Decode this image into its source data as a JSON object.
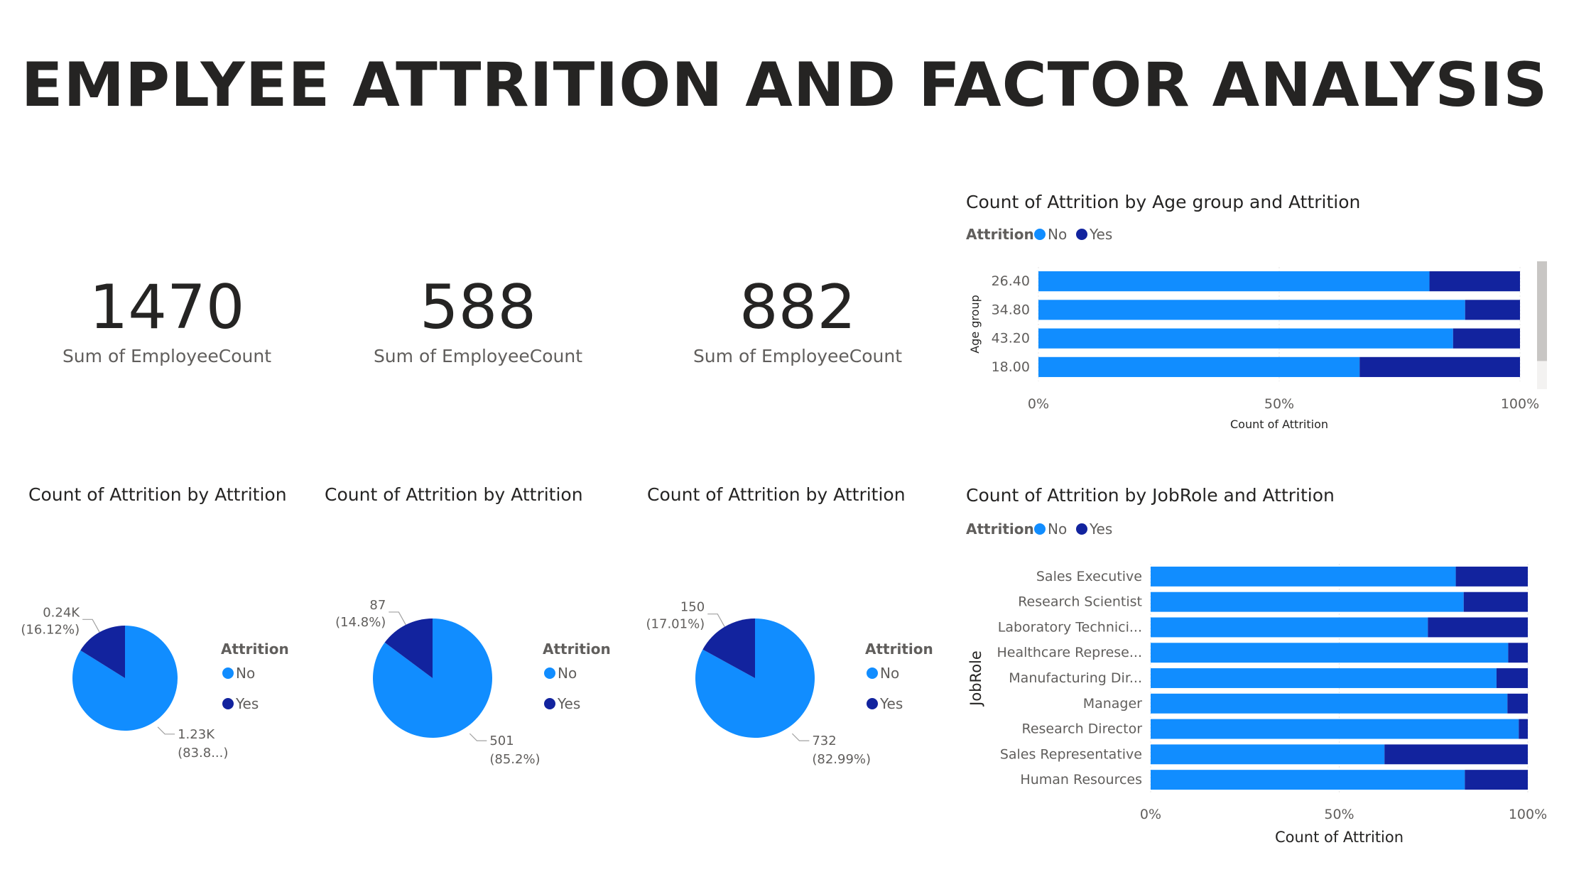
{
  "page": {
    "title": "EMPLYEE ATTRITION AND FACTOR ANALYSIS"
  },
  "colors": {
    "no": "#118dff",
    "yes": "#12239e"
  },
  "kpis": [
    {
      "value": "1470",
      "label": "Sum of EmployeeCount"
    },
    {
      "value": "588",
      "label": "Sum of EmployeeCount"
    },
    {
      "value": "882",
      "label": "Sum of EmployeeCount"
    }
  ],
  "chart_data": [
    {
      "type": "bar",
      "stacked": "100%",
      "orientation": "horizontal",
      "title": "Count of Attrition by Age group and Attrition",
      "legend": {
        "title": "Attrition",
        "entries": [
          "No",
          "Yes"
        ],
        "position": "top-left"
      },
      "ylabel": "Age group",
      "xlabel": "Count of Attrition",
      "x_ticks": [
        "0%",
        "50%",
        "100%"
      ],
      "categories": [
        "26.40",
        "34.80",
        "43.20",
        "18.00"
      ],
      "series": [
        {
          "name": "No",
          "values": [
            81.2,
            88.6,
            86.1,
            66.7
          ]
        },
        {
          "name": "Yes",
          "values": [
            18.8,
            11.4,
            13.9,
            33.3
          ]
        }
      ]
    },
    {
      "type": "pie",
      "title": "Count of Attrition by Attrition",
      "legend": {
        "title": "Attrition",
        "entries": [
          "No",
          "Yes"
        ],
        "position": "right"
      },
      "slices": [
        {
          "name": "No",
          "percent": 83.88,
          "label_value": "1.23K",
          "label_pct": "(83.8...)"
        },
        {
          "name": "Yes",
          "percent": 16.12,
          "label_value": "0.24K",
          "label_pct": "(16.12%)"
        }
      ]
    },
    {
      "type": "pie",
      "title": "Count of Attrition by Attrition",
      "legend": {
        "title": "Attrition",
        "entries": [
          "No",
          "Yes"
        ],
        "position": "right"
      },
      "slices": [
        {
          "name": "No",
          "percent": 85.2,
          "label_value": "501",
          "label_pct": "(85.2%)"
        },
        {
          "name": "Yes",
          "percent": 14.8,
          "label_value": "87",
          "label_pct": "(14.8%)"
        }
      ]
    },
    {
      "type": "pie",
      "title": "Count of Attrition by Attrition",
      "legend": {
        "title": "Attrition",
        "entries": [
          "No",
          "Yes"
        ],
        "position": "right"
      },
      "slices": [
        {
          "name": "No",
          "percent": 82.99,
          "label_value": "732",
          "label_pct": "(82.99%)"
        },
        {
          "name": "Yes",
          "percent": 17.01,
          "label_value": "150",
          "label_pct": "(17.01%)"
        }
      ]
    },
    {
      "type": "bar",
      "stacked": "100%",
      "orientation": "horizontal",
      "title": "Count of Attrition by JobRole and Attrition",
      "legend": {
        "title": "Attrition",
        "entries": [
          "No",
          "Yes"
        ],
        "position": "top-left"
      },
      "ylabel": "JobRole",
      "xlabel": "Count of Attrition",
      "x_ticks": [
        "0%",
        "50%",
        "100%"
      ],
      "categories": [
        "Sales Executive",
        "Research Scientist",
        "Laboratory Technici...",
        "Healthcare Represe...",
        "Manufacturing Dir...",
        "Manager",
        "Research Director",
        "Sales Representative",
        "Human Resources"
      ],
      "series": [
        {
          "name": "No",
          "values": [
            80.9,
            83.0,
            73.5,
            94.8,
            91.7,
            94.6,
            97.6,
            62.0,
            83.3
          ]
        },
        {
          "name": "Yes",
          "values": [
            19.1,
            17.0,
            26.5,
            5.2,
            8.3,
            5.4,
            2.4,
            38.0,
            16.7
          ]
        }
      ]
    }
  ]
}
